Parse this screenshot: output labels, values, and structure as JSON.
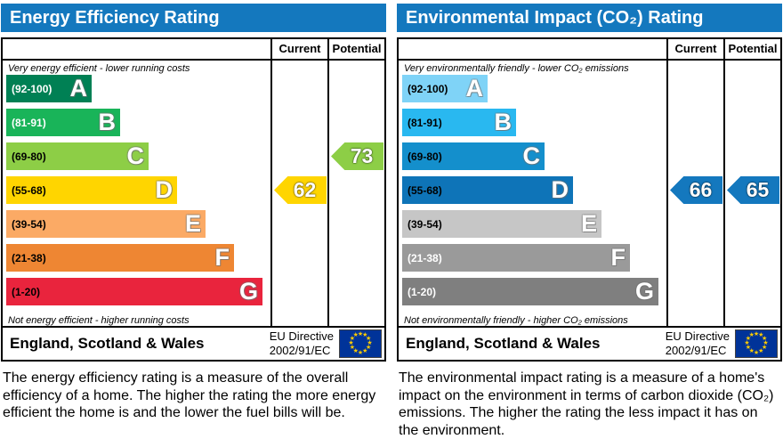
{
  "colors": {
    "header_bg": "#1478be",
    "header_text": "#ffffff",
    "border": "#000000",
    "eu_flag_bg": "#003399",
    "eu_flag_star": "#ffcc00"
  },
  "chart_data": [
    {
      "id": "energy-efficiency",
      "type": "bar",
      "title": "Energy Efficiency Rating",
      "columns": {
        "current": "Current",
        "potential": "Potential"
      },
      "top_label": "Very energy efficient - lower running costs",
      "bottom_label": "Not energy efficient - higher running costs",
      "bands": [
        {
          "letter": "A",
          "range_label": "(92-100)",
          "min": 92,
          "max": 100,
          "color": "#008054",
          "label_color": "#ffffff"
        },
        {
          "letter": "B",
          "range_label": "(81-91)",
          "min": 81,
          "max": 91,
          "color": "#19b459",
          "label_color": "#ffffff"
        },
        {
          "letter": "C",
          "range_label": "(69-80)",
          "min": 69,
          "max": 80,
          "color": "#8dce46",
          "label_color": "#000000"
        },
        {
          "letter": "D",
          "range_label": "(55-68)",
          "min": 55,
          "max": 68,
          "color": "#ffd500",
          "label_color": "#000000"
        },
        {
          "letter": "E",
          "range_label": "(39-54)",
          "min": 39,
          "max": 54,
          "color": "#fbaa65",
          "label_color": "#000000"
        },
        {
          "letter": "F",
          "range_label": "(21-38)",
          "min": 21,
          "max": 38,
          "color": "#ee8633",
          "label_color": "#000000"
        },
        {
          "letter": "G",
          "range_label": "(1-20)",
          "min": 1,
          "max": 20,
          "color": "#e9243d",
          "label_color": "#000000"
        }
      ],
      "current": {
        "value": 62,
        "band": "D",
        "arrow_color": "#ffd500"
      },
      "potential": {
        "value": 73,
        "band": "C",
        "arrow_color": "#8dce46"
      },
      "footer": {
        "region": "England, Scotland & Wales",
        "directive_line1": "EU Directive",
        "directive_line2": "2002/91/EC"
      },
      "description": "The energy efficiency rating is a measure of the overall efficiency of a home. The higher the rating the more energy efficient the home is and the lower the fuel bills will be."
    },
    {
      "id": "environmental-impact",
      "type": "bar",
      "title": "Environmental Impact (CO₂) Rating",
      "columns": {
        "current": "Current",
        "potential": "Potential"
      },
      "top_label": "Very environmentally friendly - lower CO₂ emissions",
      "bottom_label": "Not environmentally friendly - higher CO₂ emissions",
      "bands": [
        {
          "letter": "A",
          "range_label": "(92-100)",
          "min": 92,
          "max": 100,
          "color": "#7fd3f7",
          "label_color": "#000000"
        },
        {
          "letter": "B",
          "range_label": "(81-91)",
          "min": 81,
          "max": 91,
          "color": "#29b8f0",
          "label_color": "#000000"
        },
        {
          "letter": "C",
          "range_label": "(69-80)",
          "min": 69,
          "max": 80,
          "color": "#148fcc",
          "label_color": "#000000"
        },
        {
          "letter": "D",
          "range_label": "(55-68)",
          "min": 55,
          "max": 68,
          "color": "#0e74b8",
          "label_color": "#000000"
        },
        {
          "letter": "E",
          "range_label": "(39-54)",
          "min": 39,
          "max": 54,
          "color": "#c6c6c6",
          "label_color": "#000000"
        },
        {
          "letter": "F",
          "range_label": "(21-38)",
          "min": 21,
          "max": 38,
          "color": "#9a9a9a",
          "label_color": "#ffffff"
        },
        {
          "letter": "G",
          "range_label": "(1-20)",
          "min": 1,
          "max": 20,
          "color": "#7f7f7f",
          "label_color": "#ffffff"
        }
      ],
      "current": {
        "value": 66,
        "band": "D",
        "arrow_color": "#1478be"
      },
      "potential": {
        "value": 65,
        "band": "D",
        "arrow_color": "#1478be"
      },
      "footer": {
        "region": "England, Scotland & Wales",
        "directive_line1": "EU Directive",
        "directive_line2": "2002/91/EC"
      },
      "description": "The environmental impact rating is a measure of a home's impact on the environment in terms of carbon dioxide (CO₂) emissions. The higher the rating the less impact it has on the environment."
    }
  ]
}
